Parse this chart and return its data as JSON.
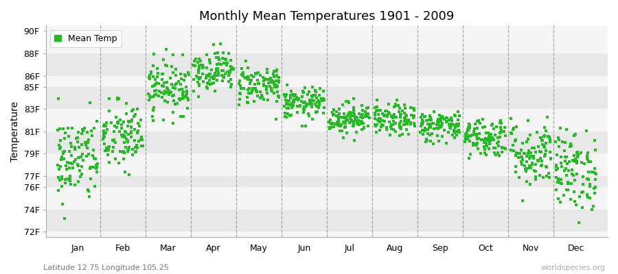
{
  "title": "Monthly Mean Temperatures 1901 - 2009",
  "ylabel": "Temperature",
  "xlabel_months": [
    "Jan",
    "Feb",
    "Mar",
    "Apr",
    "May",
    "Jun",
    "Jul",
    "Aug",
    "Sep",
    "Oct",
    "Nov",
    "Dec"
  ],
  "ytick_labels": [
    "72F",
    "74F",
    "76F",
    "77F",
    "79F",
    "81F",
    "83F",
    "85F",
    "86F",
    "88F",
    "90F"
  ],
  "ytick_values": [
    72,
    74,
    76,
    77,
    79,
    81,
    83,
    85,
    86,
    88,
    90
  ],
  "ylim": [
    71.5,
    90.5
  ],
  "legend_label": "Mean Temp",
  "marker_color": "#22bb22",
  "marker": "s",
  "marker_size": 2.5,
  "fig_bg_color": "#ffffff",
  "plot_bg_color": "#f5f5f5",
  "band_colors": [
    "#e8e8e8",
    "#f5f5f5"
  ],
  "vline_color": "#888888",
  "bottom_left_text": "Latitude 12.75 Longitude 105.25",
  "bottom_right_text": "worldspecies.org",
  "years": 109,
  "month_means_F": [
    78.5,
    80.5,
    85.0,
    86.5,
    85.2,
    83.5,
    82.2,
    82.0,
    81.5,
    80.5,
    79.0,
    77.5
  ],
  "month_stds_F": [
    2.0,
    1.6,
    1.2,
    0.9,
    0.9,
    0.7,
    0.7,
    0.7,
    0.7,
    0.9,
    1.5,
    1.8
  ],
  "seed": 42
}
